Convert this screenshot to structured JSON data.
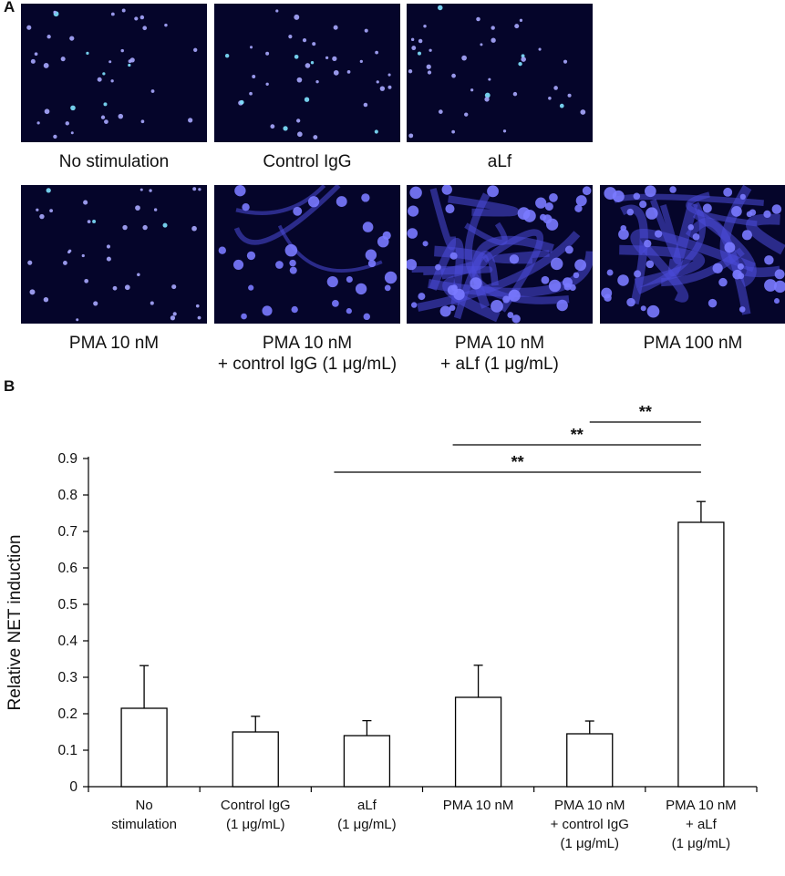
{
  "panel_a": {
    "label": "A",
    "images": [
      {
        "caption_lines": [
          "No stimulation"
        ],
        "pattern": "sparse"
      },
      {
        "caption_lines": [
          "Control IgG"
        ],
        "pattern": "sparse"
      },
      {
        "caption_lines": [
          "aLf"
        ],
        "pattern": "sparse"
      },
      {
        "caption_lines": [
          "PMA 10 nM"
        ],
        "pattern": "sparse"
      },
      {
        "caption_lines": [
          "PMA 10 nM",
          "+ control IgG (1 μg/mL)"
        ],
        "pattern": "medium"
      },
      {
        "caption_lines": [
          "PMA 10 nM",
          "+ aLf (1 μg/mL)"
        ],
        "pattern": "nets"
      },
      {
        "caption_lines": [
          "PMA 100 nM"
        ],
        "pattern": "nets"
      }
    ]
  },
  "panel_b": {
    "label": "B"
  },
  "chart_data": {
    "type": "bar",
    "ylabel": "Relative NET induction",
    "xlabel": "",
    "ylim": [
      0,
      0.9
    ],
    "yticks": [
      "0",
      "0.1",
      "0.2",
      "0.3",
      "0.4",
      "0.5",
      "0.6",
      "0.7",
      "0.8",
      "0.9"
    ],
    "categories": [
      [
        "No",
        "stimulation"
      ],
      [
        "Control IgG",
        "(1 μg/mL)"
      ],
      [
        "aLf",
        "(1 μg/mL)"
      ],
      [
        "PMA 10 nM"
      ],
      [
        "PMA 10 nM",
        "+ control IgG",
        "(1 μg/mL)"
      ],
      [
        "PMA 10 nM",
        "+ aLf",
        "(1 μg/mL)"
      ]
    ],
    "values": [
      0.215,
      0.15,
      0.14,
      0.245,
      0.145,
      0.725
    ],
    "errors": [
      0.117,
      0.043,
      0.041,
      0.088,
      0.035,
      0.057
    ],
    "bar_fill": "#ffffff",
    "bar_stroke": "#000000",
    "significance": [
      {
        "from": 5,
        "to": 4,
        "label": "**"
      },
      {
        "from": 3,
        "to": 5,
        "label": "**"
      },
      {
        "from": 2,
        "to": 5,
        "label": "**"
      }
    ]
  }
}
